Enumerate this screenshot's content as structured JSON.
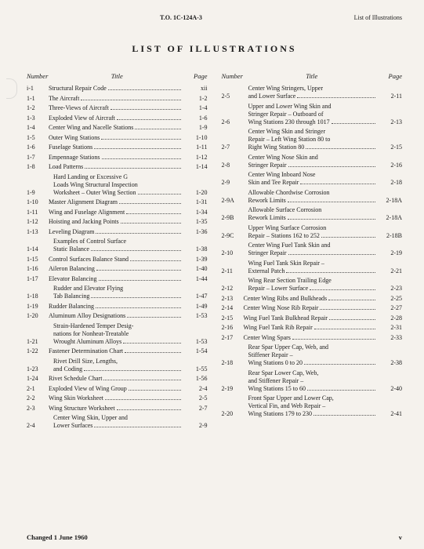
{
  "header": {
    "doc_id": "T.O. 1C-124A-3",
    "right": "List of Illustrations"
  },
  "title": "LIST OF ILLUSTRATIONS",
  "col_headers": {
    "number": "Number",
    "title": "Title",
    "page": "Page"
  },
  "left": [
    {
      "n": "i-1",
      "t": [
        "Structural Repair Code"
      ],
      "p": "xii"
    },
    {
      "n": "1-1",
      "t": [
        "The Aircraft"
      ],
      "p": "1-2"
    },
    {
      "n": "1-2",
      "t": [
        "Three-Views of Aircraft"
      ],
      "p": "1-4"
    },
    {
      "n": "1-3",
      "t": [
        "Exploded View of Aircraft"
      ],
      "p": "1-6"
    },
    {
      "n": "1-4",
      "t": [
        "Center Wing and Nacelle Stations"
      ],
      "p": "1-9"
    },
    {
      "n": "1-5",
      "t": [
        "Outer Wing Stations"
      ],
      "p": "1-10"
    },
    {
      "n": "1-6",
      "t": [
        "Fuselage Stations"
      ],
      "p": "1-11"
    },
    {
      "n": "1-7",
      "t": [
        "Empennage Stations"
      ],
      "p": "1-12"
    },
    {
      "n": "1-8",
      "t": [
        "Load Patterns"
      ],
      "p": "1-14"
    },
    {
      "n": "1-9",
      "t": [
        "Hard Landing or Excessive G",
        "Loads Wing Structural Inspection",
        "Worksheet – Outer Wing Section"
      ],
      "p": "1-20"
    },
    {
      "n": "1-10",
      "t": [
        "Master Alignment Diagram"
      ],
      "p": "1-31"
    },
    {
      "n": "1-11",
      "t": [
        "Wing and Fuselage Alignment"
      ],
      "p": "1-34"
    },
    {
      "n": "1-12",
      "t": [
        "Hoisting and Jacking Points"
      ],
      "p": "1-35"
    },
    {
      "n": "1-13",
      "t": [
        "Leveling Diagram"
      ],
      "p": "1-36"
    },
    {
      "n": "1-14",
      "t": [
        "Examples of Control Surface",
        "Static Balance"
      ],
      "p": "1-38"
    },
    {
      "n": "1-15",
      "t": [
        "Control Surfaces Balance Stand"
      ],
      "p": "1-39"
    },
    {
      "n": "1-16",
      "t": [
        "Aileron Balancing"
      ],
      "p": "1-40"
    },
    {
      "n": "1-17",
      "t": [
        "Elevator Balancing"
      ],
      "p": "1-44"
    },
    {
      "n": "1-18",
      "t": [
        "Rudder and Elevator Flying",
        "Tab Balancing"
      ],
      "p": "1-47"
    },
    {
      "n": "1-19",
      "t": [
        "Rudder Balancing"
      ],
      "p": "1-49"
    },
    {
      "n": "1-20",
      "t": [
        "Aluminum Alloy Designations"
      ],
      "p": "1-53"
    },
    {
      "n": "1-21",
      "t": [
        "Strain-Hardened Temper Desig-",
        "nations for Nonheat-Treatable",
        "Wrought Aluminum Alloys"
      ],
      "p": "1-53"
    },
    {
      "n": "1-22",
      "t": [
        "Fastener Determination Chart"
      ],
      "p": "1-54"
    },
    {
      "n": "1-23",
      "t": [
        "Rivet Drill Size, Lengths,",
        "and Coding"
      ],
      "p": "1-55"
    },
    {
      "n": "1-24",
      "t": [
        "Rivet Schedule Chart"
      ],
      "p": "1-56"
    },
    {
      "n": "2-1",
      "t": [
        "Exploded View of Wing Group"
      ],
      "p": "2-4"
    },
    {
      "n": "2-2",
      "t": [
        "Wing Skin Worksheet"
      ],
      "p": "2-5"
    },
    {
      "n": "2-3",
      "t": [
        "Wing Structure Worksheet"
      ],
      "p": "2-7"
    },
    {
      "n": "2-4",
      "t": [
        "Center Wing Skin, Upper and",
        "Lower Surfaces"
      ],
      "p": "2-9"
    }
  ],
  "right": [
    {
      "n": "2-5",
      "t": [
        "Center Wing Stringers, Upper",
        "and Lower Surface"
      ],
      "p": "2-11"
    },
    {
      "n": "2-6",
      "t": [
        "Upper and Lower Wing Skin and",
        "Stringer Repair – Outboard of",
        "Wing Stations 230 through 1017"
      ],
      "p": "2-13"
    },
    {
      "n": "2-7",
      "t": [
        "Center Wing Skin and Stringer",
        "Repair – Left Wing Station 80 to",
        "Right Wing Station 80"
      ],
      "p": "2-15"
    },
    {
      "n": "2-8",
      "t": [
        "Center Wing Nose Skin and",
        "Stringer Repair"
      ],
      "p": "2-16"
    },
    {
      "n": "2-9",
      "t": [
        "Center Wing Inboard Nose",
        "Skin and Tee Repair"
      ],
      "p": "2-18"
    },
    {
      "n": "2-9A",
      "t": [
        "Allowable Chordwise Corrosion",
        "Rework Limits"
      ],
      "p": "2-18A"
    },
    {
      "n": "2-9B",
      "t": [
        "Allowable Surface Corrosion",
        "Rework Limits"
      ],
      "p": "2-18A"
    },
    {
      "n": "2-9C",
      "t": [
        "Upper Wing Surface Corrosion",
        "Repair – Stations 162 to 252"
      ],
      "p": "2-18B"
    },
    {
      "n": "2-10",
      "t": [
        "Center Wing Fuel Tank Skin and",
        "Stringer Repair"
      ],
      "p": "2-19"
    },
    {
      "n": "2-11",
      "t": [
        "Wing Fuel Tank Skin Repair –",
        "External Patch"
      ],
      "p": "2-21"
    },
    {
      "n": "2-12",
      "t": [
        "Wing Rear Section Trailing Edge",
        "Repair – Lower Surface"
      ],
      "p": "2-23"
    },
    {
      "n": "2-13",
      "t": [
        "Center Wing Ribs and Bulkheads"
      ],
      "p": "2-25"
    },
    {
      "n": "2-14",
      "t": [
        "Center Wing Nose Rib Repair"
      ],
      "p": "2-27"
    },
    {
      "n": "2-15",
      "t": [
        "Wing Fuel Tank Bulkhead Repair"
      ],
      "p": "2-28"
    },
    {
      "n": "2-16",
      "t": [
        "Wing Fuel Tank Rib Repair"
      ],
      "p": "2-31"
    },
    {
      "n": "2-17",
      "t": [
        "Center Wing Spars"
      ],
      "p": "2-33"
    },
    {
      "n": "2-18",
      "t": [
        "Rear Spar Upper Cap, Web, and",
        "Stiffener Repair –",
        "Wing Stations 0 to 20"
      ],
      "p": "2-38"
    },
    {
      "n": "2-19",
      "t": [
        "Rear Spar Lower Cap, Web,",
        "and Stiffener Repair –",
        "Wing Stations 15 to 60"
      ],
      "p": "2-40"
    },
    {
      "n": "2-20",
      "t": [
        "Front Spar Upper and Lower Cap,",
        "Vertical Fin, and Web Repair –",
        "Wing Stations 179 to 230"
      ],
      "p": "2-41"
    }
  ],
  "footer": {
    "changed": "Changed 1 June 1960",
    "pagenum": "v"
  }
}
